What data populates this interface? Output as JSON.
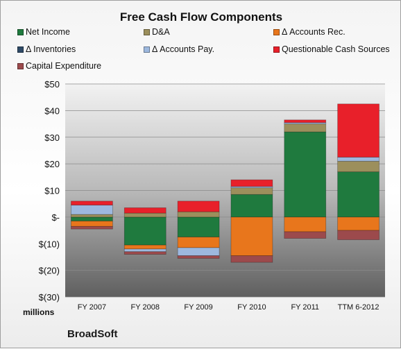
{
  "chart_data": {
    "type": "bar",
    "stacked": true,
    "title": "Free Cash Flow Components",
    "units_label": "millions",
    "footer": "BroadSoft",
    "categories": [
      "FY 2007",
      "FY 2008",
      "FY 2009",
      "FY 2010",
      "FY 2011",
      "TTM 6-2012"
    ],
    "ylim": [
      -30,
      50
    ],
    "yticks": [
      50,
      40,
      30,
      20,
      10,
      0,
      -10,
      -20,
      -30
    ],
    "ytick_labels": [
      "$50",
      "$40",
      "$30",
      "$20",
      "$10",
      "$-",
      "$(10)",
      "$(20)",
      "$(30)"
    ],
    "grid": true,
    "legend_position": "top",
    "series": [
      {
        "name": "Net Income",
        "color": "#1f7a3e",
        "values": [
          -1.5,
          -10.5,
          -7.5,
          8.5,
          32,
          17
        ]
      },
      {
        "name": "D&A",
        "color": "#9c8f5c",
        "values": [
          1,
          1.5,
          2,
          2.5,
          3,
          4
        ]
      },
      {
        "name": "Δ Accounts Rec.",
        "color": "#e8761c",
        "values": [
          -2,
          -1.5,
          -4,
          -14.5,
          -5.5,
          -5
        ]
      },
      {
        "name": "Δ Inventories",
        "color": "#2e4a66",
        "values": [
          0,
          0,
          0,
          0,
          0,
          0
        ]
      },
      {
        "name": "Δ Accounts Pay.",
        "color": "#9db8de",
        "values": [
          3.5,
          -1,
          -3,
          0.5,
          0.5,
          1.5
        ]
      },
      {
        "name": "Questionable Cash Sources",
        "color": "#e8202a",
        "values": [
          1.5,
          2,
          4,
          2.5,
          1,
          20
        ]
      },
      {
        "name": "Capital Expenditure",
        "color": "#9c4a4c",
        "values": [
          -1,
          -1,
          -1,
          -2.5,
          -2.5,
          -3.5
        ]
      }
    ]
  }
}
